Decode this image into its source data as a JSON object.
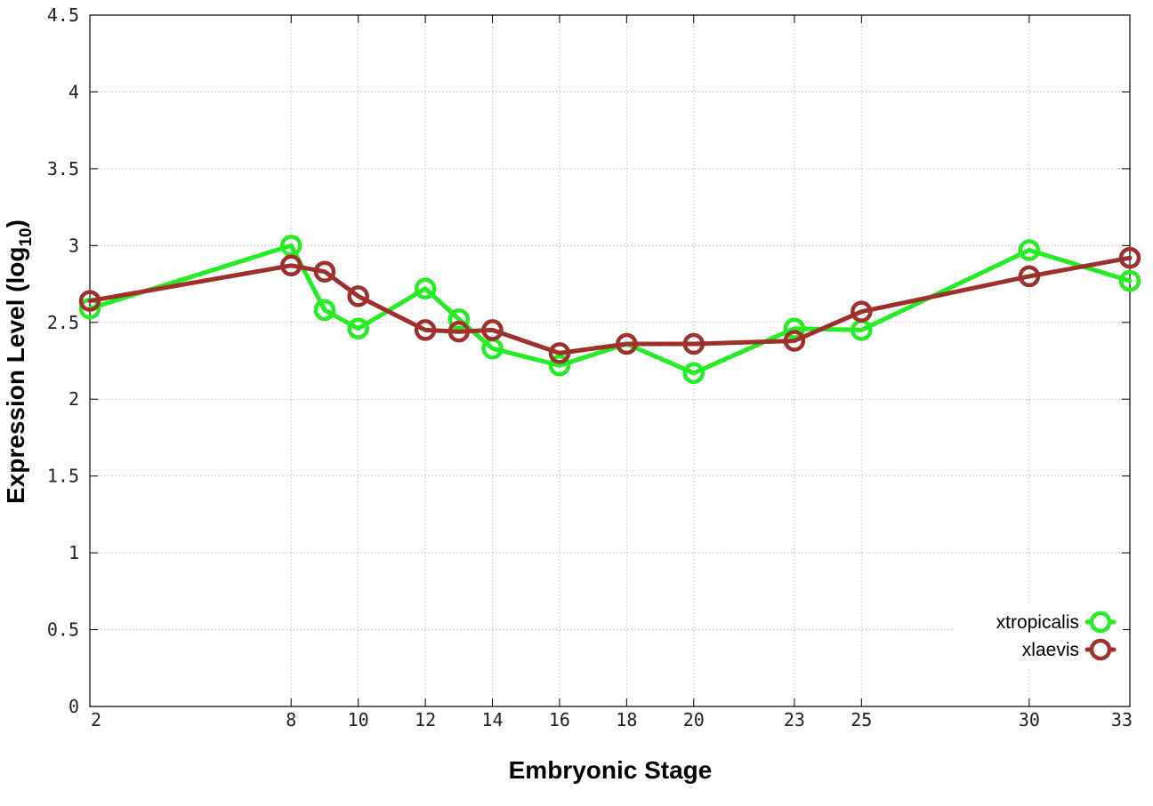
{
  "chart_data": {
    "type": "line",
    "xlabel": "Embryonic Stage",
    "ylabel": "Expression Level (log",
    "ylabel_subscript": "10",
    "ylabel_suffix": ")",
    "x_ticks": [
      2,
      8,
      10,
      12,
      14,
      16,
      18,
      20,
      23,
      25,
      30,
      33
    ],
    "x_tick_labels": [
      "2",
      "8",
      "10",
      "12",
      "14",
      "16",
      "18",
      "20",
      "23",
      "25",
      "30",
      "33"
    ],
    "y_ticks": [
      0,
      0.5,
      1,
      1.5,
      2,
      2.5,
      3,
      3.5,
      4,
      4.5
    ],
    "y_tick_labels": [
      "0",
      "0.5",
      "1",
      "1.5",
      "2",
      "2.5",
      "3",
      "3.5",
      "4",
      "4.5"
    ],
    "xlim": [
      2,
      33
    ],
    "ylim": [
      0,
      4.5
    ],
    "grid": true,
    "legend_position": "bottom-right",
    "series": [
      {
        "name": "xtropicalis",
        "color": "#22ee22",
        "x": [
          2,
          8,
          9,
          10,
          12,
          13,
          14,
          16,
          18,
          20,
          23,
          25,
          30,
          33
        ],
        "y": [
          2.59,
          3.0,
          2.58,
          2.46,
          2.72,
          2.52,
          2.33,
          2.22,
          2.36,
          2.17,
          2.46,
          2.45,
          2.97,
          2.77
        ]
      },
      {
        "name": "xlaevis",
        "color": "#a0302b",
        "x": [
          2,
          8,
          9,
          10,
          12,
          13,
          14,
          16,
          18,
          20,
          23,
          25,
          30,
          33
        ],
        "y": [
          2.64,
          2.87,
          2.83,
          2.67,
          2.45,
          2.44,
          2.45,
          2.3,
          2.36,
          2.36,
          2.38,
          2.57,
          2.8,
          2.92
        ]
      }
    ]
  }
}
